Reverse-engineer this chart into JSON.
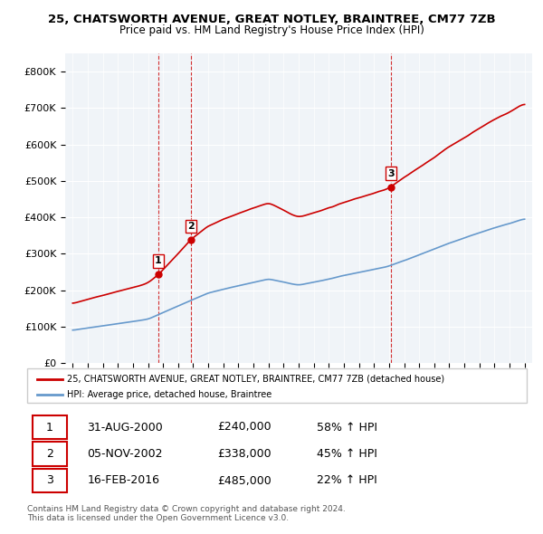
{
  "title": "25, CHATSWORTH AVENUE, GREAT NOTLEY, BRAINTREE, CM77 7ZB",
  "subtitle": "Price paid vs. HM Land Registry's House Price Index (HPI)",
  "ylabel": "",
  "ylim": [
    0,
    850000
  ],
  "yticks": [
    0,
    100000,
    200000,
    300000,
    400000,
    500000,
    600000,
    700000,
    800000
  ],
  "ytick_labels": [
    "£0",
    "£100K",
    "£200K",
    "£300K",
    "£400K",
    "£500K",
    "£600K",
    "£700K",
    "£800K"
  ],
  "sale_color": "#cc0000",
  "hpi_color": "#6699cc",
  "sale_label": "25, CHATSWORTH AVENUE, GREAT NOTLEY, BRAINTREE, CM77 7ZB (detached house)",
  "hpi_label": "HPI: Average price, detached house, Braintree",
  "transactions": [
    {
      "num": 1,
      "date": "31-AUG-2000",
      "price": 240000,
      "pct": "58%",
      "dir": "↑",
      "year": 2000.67
    },
    {
      "num": 2,
      "date": "05-NOV-2002",
      "price": 338000,
      "pct": "45%",
      "dir": "↑",
      "year": 2002.84
    },
    {
      "num": 3,
      "date": "16-FEB-2016",
      "price": 485000,
      "pct": "22%",
      "dir": "↑",
      "year": 2016.12
    }
  ],
  "footer": "Contains HM Land Registry data © Crown copyright and database right 2024.\nThis data is licensed under the Open Government Licence v3.0.",
  "background_color": "#ffffff",
  "plot_bg_color": "#f0f4f8"
}
